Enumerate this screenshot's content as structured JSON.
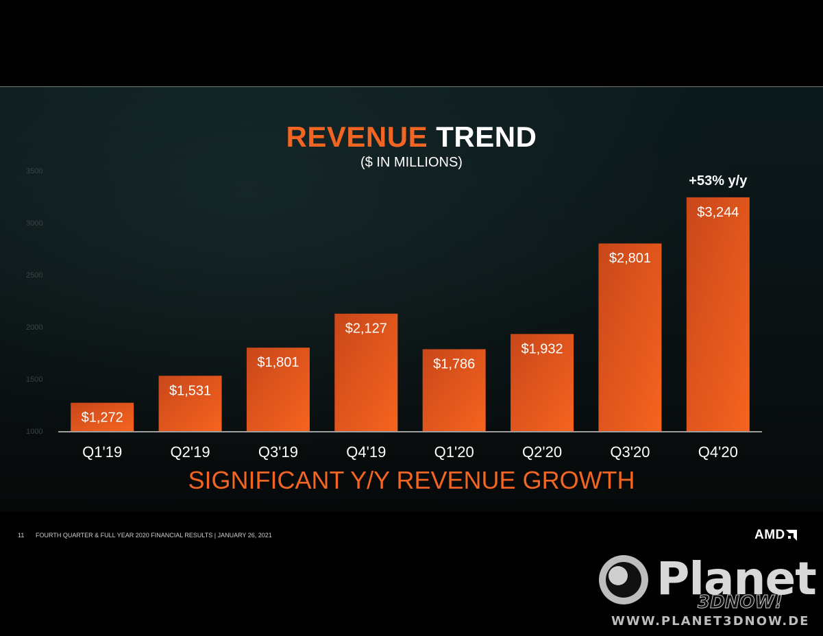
{
  "title": {
    "highlight": "REVENUE",
    "rest": "TREND"
  },
  "subtitle": "($ IN MILLIONS)",
  "growth_text": "SIGNIFICANT Y/Y REVENUE GROWTH",
  "footer": {
    "page_number": "11",
    "text": "FOURTH QUARTER & FULL YEAR 2020 FINANCIAL RESULTS   |   JANUARY 26, 2021"
  },
  "brand": {
    "name": "AMD",
    "accent": "#f26522"
  },
  "watermark": {
    "name": "Planet",
    "sub": "3DNOW!",
    "url": "WWW.PLANET3DNOW.DE"
  },
  "chart_data": {
    "type": "bar",
    "categories": [
      "Q1'19",
      "Q2'19",
      "Q3'19",
      "Q4'19",
      "Q1'20",
      "Q2'20",
      "Q3'20",
      "Q4'20"
    ],
    "values": [
      1272,
      1531,
      1801,
      2127,
      1786,
      1932,
      2801,
      3244
    ],
    "value_labels": [
      "$1,272",
      "$1,531",
      "$1,801",
      "$2,127",
      "$1,786",
      "$1,932",
      "$2,801",
      "$3,244"
    ],
    "yticks": [
      1000,
      1500,
      2000,
      2500,
      3000,
      3500
    ],
    "ylim": [
      1000,
      3500
    ],
    "annotation": {
      "category": "Q4'20",
      "text": "+53% y/y"
    },
    "bar_color": "#f26522",
    "grid": false
  }
}
